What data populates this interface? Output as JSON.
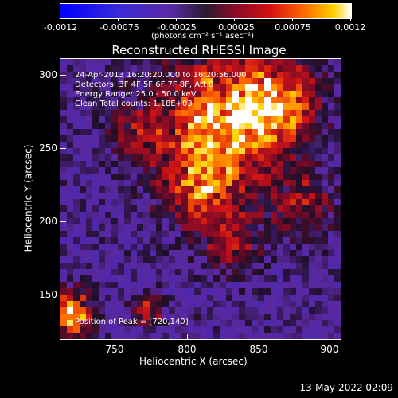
{
  "colorbar": {
    "labels": [
      "-0.0012",
      "-0.00075",
      "-0.00025",
      "0.00025",
      "0.00075",
      "0.0012"
    ],
    "units": "(photons cm⁻² s⁻¹ asec⁻²)"
  },
  "title": "Reconstructed RHESSI Image",
  "info": {
    "time": "24-Apr-2013 16:20:20.000 to 16:20:56.000",
    "detectors": "Detectors: 3F 4F 5F 6F 7F 8F, Att 0",
    "energy": "Energy Range: 25.0 - 50.0 keV",
    "method": "Clean    Total counts: 1.18E+03",
    "peak": "Position of Peak = [720,140]"
  },
  "axes": {
    "x_title": "Heliocentric X (arcsec)",
    "y_title": "Heliocentric Y (arcsec)",
    "x_ticks": [
      "750",
      "800",
      "850",
      "900"
    ],
    "y_ticks": [
      "300",
      "250",
      "200",
      "150"
    ]
  },
  "footer": {
    "date": "13-May-2022 02:09"
  },
  "colors": {
    "background": "#000000",
    "foreground": "#ffffff"
  }
}
